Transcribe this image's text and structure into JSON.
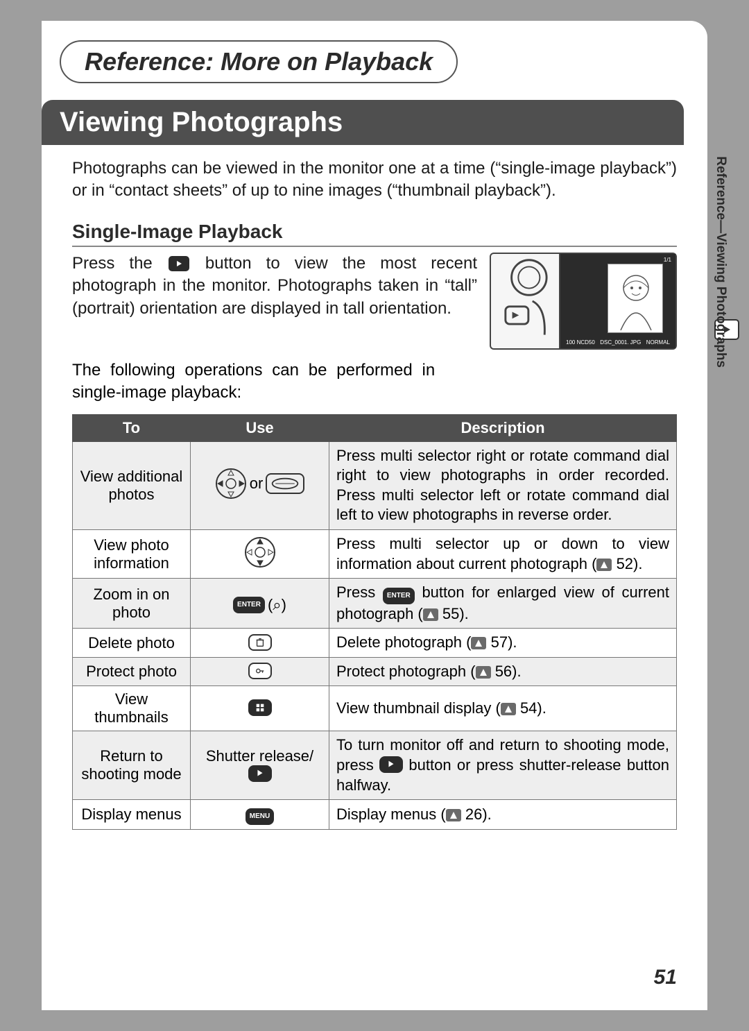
{
  "chapter_title": "Reference: More on Playback",
  "section_title": "Viewing Photographs",
  "intro_text": "Photographs can be viewed in the monitor one at a time (“single-image playback”) or in “contact sheets” of up to nine images (“thumbnail playback”).",
  "subsection_title": "Single-Image Playback",
  "body_para_1_a": "Press the ",
  "body_para_1_b": " button to view the most recent photograph in the monitor.  Photographs taken in “tall” (portrait) orientation are displayed in tall orientation.",
  "body_para_2": "The following operations can be performed in single-image playback:",
  "side_tab_text": "Reference—Viewing Photographs",
  "page_number": "51",
  "lcd": {
    "counter": "1/1",
    "folder": "100 NCD50",
    "file": "DSC_0001. JPG",
    "quality": "NORMAL"
  },
  "table": {
    "headers": {
      "to": "To",
      "use": "Use",
      "desc": "Description"
    },
    "rows": [
      {
        "shade": true,
        "to": "View additional photos",
        "use_type": "selector-lr-dial",
        "use_text": "or",
        "desc_parts": [
          "Press multi selector right or rotate command dial right to view photographs in order recorded. Press multi selector left or rotate command dial left to view photographs in reverse order."
        ]
      },
      {
        "shade": false,
        "to": "View photo information",
        "use_type": "selector-ud",
        "desc_parts": [
          "Press multi selector up or down to view information about current photograph (",
          {
            "ref": "52"
          },
          ")."
        ]
      },
      {
        "shade": true,
        "to": "Zoom in on photo",
        "use_type": "enter-zoom",
        "use_label": "ENTER",
        "use_suffix": "(⌕)",
        "desc_parts": [
          "Press ",
          {
            "pill": "ENTER"
          },
          " button for enlarged view of current photograph (",
          {
            "ref": "55"
          },
          ")."
        ]
      },
      {
        "shade": false,
        "to": "Delete photo",
        "use_type": "pill-white",
        "use_icon": "trash",
        "desc_parts": [
          "Delete photograph (",
          {
            "ref": "57"
          },
          ")."
        ]
      },
      {
        "shade": true,
        "to": "Protect photo",
        "use_type": "pill-white",
        "use_icon": "key",
        "desc_parts": [
          "Protect photograph (",
          {
            "ref": "56"
          },
          ")."
        ]
      },
      {
        "shade": false,
        "to": "View thumbnails",
        "use_type": "pill-dark",
        "use_icon": "grid",
        "desc_parts": [
          "View thumbnail display (",
          {
            "ref": "54"
          },
          ")."
        ]
      },
      {
        "shade": true,
        "to": "Return to shooting mode",
        "use_type": "text-icon",
        "use_text": "Shutter release/",
        "use_icon": "play",
        "desc_parts": [
          "To turn monitor off and return to shooting mode, press ",
          {
            "pill_icon": "play"
          },
          " button or press shutter-release button halfway."
        ]
      },
      {
        "shade": false,
        "to": "Display menus",
        "use_type": "pill-dark-label",
        "use_label": "MENU",
        "desc_parts": [
          "Display menus (",
          {
            "ref": "26"
          },
          ")."
        ]
      }
    ]
  },
  "colors": {
    "page_bg": "#ffffff",
    "outer_bg": "#9e9e9e",
    "banner_bg": "#4f4f4f",
    "banner_fg": "#ffffff",
    "text": "#1a1a1a",
    "row_shade": "#eeeeee",
    "border": "#777777"
  },
  "fonts": {
    "chapter_pt": 36,
    "section_pt": 40,
    "subhead_pt": 28,
    "body_pt": 24,
    "table_pt": 22,
    "pagenum_pt": 30,
    "sidetab_pt": 19
  }
}
